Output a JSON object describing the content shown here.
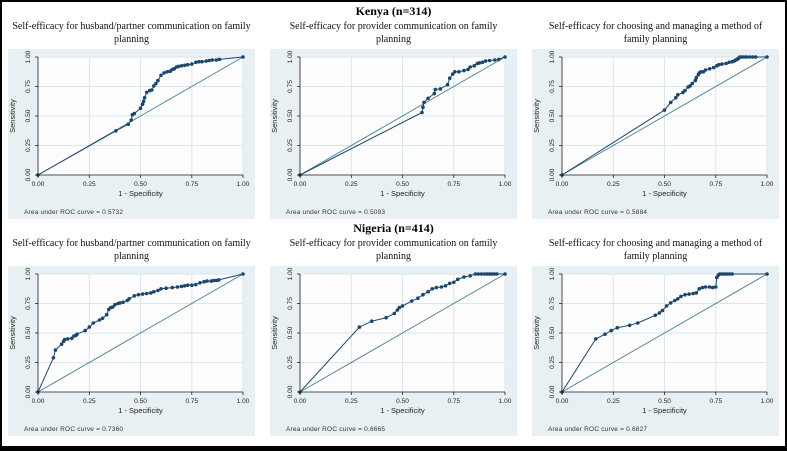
{
  "sections": [
    {
      "header": "Kenya (n=314)"
    },
    {
      "header": "Nigeria (n=414)"
    }
  ],
  "colors": {
    "curve": "#1a476f",
    "reference_line": "#45808c",
    "card_background": "#e9f0f4",
    "plot_background": "#fdfdfd",
    "gridline": "#d9e6ec",
    "axis": "#222222"
  },
  "chart_data": [
    {
      "type": "line",
      "section": 0,
      "title": "Self-efficacy for husband/partner communication on family planning",
      "xlabel": "1 - Specificity",
      "ylabel": "Sensitivity",
      "xticks": [
        "0.00",
        "0.25",
        "0.50",
        "0.75",
        "1.00"
      ],
      "yticks": [
        "0.00",
        "0.25",
        "0.50",
        "0.75",
        "1.00"
      ],
      "xlim": [
        0,
        1
      ],
      "ylim": [
        0,
        1
      ],
      "auc": 0.5732,
      "note": "Area under ROC curve = 0.5732",
      "reference_line": [
        [
          0,
          0
        ],
        [
          1,
          1
        ]
      ],
      "points": [
        [
          0,
          0
        ],
        [
          0.38,
          0.375
        ],
        [
          0.44,
          0.43
        ],
        [
          0.455,
          0.465
        ],
        [
          0.46,
          0.51
        ],
        [
          0.47,
          0.52
        ],
        [
          0.5,
          0.565
        ],
        [
          0.51,
          0.6
        ],
        [
          0.515,
          0.625
        ],
        [
          0.52,
          0.655
        ],
        [
          0.53,
          0.7
        ],
        [
          0.545,
          0.715
        ],
        [
          0.555,
          0.72
        ],
        [
          0.565,
          0.755
        ],
        [
          0.575,
          0.775
        ],
        [
          0.585,
          0.8
        ],
        [
          0.6,
          0.845
        ],
        [
          0.615,
          0.865
        ],
        [
          0.63,
          0.875
        ],
        [
          0.645,
          0.88
        ],
        [
          0.655,
          0.895
        ],
        [
          0.665,
          0.9
        ],
        [
          0.675,
          0.915
        ],
        [
          0.685,
          0.92
        ],
        [
          0.7,
          0.925
        ],
        [
          0.715,
          0.93
        ],
        [
          0.73,
          0.935
        ],
        [
          0.75,
          0.94
        ],
        [
          0.77,
          0.955
        ],
        [
          0.785,
          0.96
        ],
        [
          0.8,
          0.96
        ],
        [
          0.82,
          0.965
        ],
        [
          0.835,
          0.97
        ],
        [
          0.85,
          0.975
        ],
        [
          0.87,
          0.975
        ],
        [
          0.885,
          0.98
        ],
        [
          1,
          1
        ]
      ]
    },
    {
      "type": "line",
      "section": 0,
      "title": "Self-efficacy for provider communication on family planning",
      "xlabel": "1 - Specificity",
      "ylabel": "Sensitivity",
      "xticks": [
        "0.00",
        "0.25",
        "0.50",
        "0.75",
        "1.00"
      ],
      "yticks": [
        "0.00",
        "0.25",
        "0.50",
        "0.75",
        "1.00"
      ],
      "xlim": [
        0,
        1
      ],
      "ylim": [
        0,
        1
      ],
      "auc": 0.5093,
      "note": "Area under ROC curve = 0.5093",
      "reference_line": [
        [
          0,
          0
        ],
        [
          1,
          1
        ]
      ],
      "points": [
        [
          0,
          0
        ],
        [
          0.595,
          0.53
        ],
        [
          0.6,
          0.575
        ],
        [
          0.605,
          0.615
        ],
        [
          0.625,
          0.65
        ],
        [
          0.655,
          0.69
        ],
        [
          0.66,
          0.725
        ],
        [
          0.685,
          0.73
        ],
        [
          0.72,
          0.765
        ],
        [
          0.73,
          0.82
        ],
        [
          0.745,
          0.855
        ],
        [
          0.755,
          0.875
        ],
        [
          0.775,
          0.875
        ],
        [
          0.8,
          0.885
        ],
        [
          0.82,
          0.895
        ],
        [
          0.83,
          0.915
        ],
        [
          0.85,
          0.925
        ],
        [
          0.865,
          0.945
        ],
        [
          0.875,
          0.95
        ],
        [
          0.89,
          0.955
        ],
        [
          0.905,
          0.965
        ],
        [
          0.925,
          0.97
        ],
        [
          0.95,
          0.975
        ],
        [
          0.97,
          0.98
        ],
        [
          1,
          1
        ]
      ]
    },
    {
      "type": "line",
      "section": 0,
      "title": "Self-efficacy for choosing and managing a method of family planning",
      "xlabel": "1 - Specificity",
      "ylabel": "Sensitivity",
      "xticks": [
        "0.00",
        "0.25",
        "0.50",
        "0.75",
        "1.00"
      ],
      "yticks": [
        "0.00",
        "0.25",
        "0.50",
        "0.75",
        "1.00"
      ],
      "xlim": [
        0,
        1
      ],
      "ylim": [
        0,
        1
      ],
      "auc": 0.5884,
      "note": "Area under ROC curve = 0.5884",
      "reference_line": [
        [
          0,
          0
        ],
        [
          1,
          1
        ]
      ],
      "points": [
        [
          0,
          0
        ],
        [
          0.5,
          0.55
        ],
        [
          0.53,
          0.615
        ],
        [
          0.555,
          0.655
        ],
        [
          0.565,
          0.68
        ],
        [
          0.59,
          0.7
        ],
        [
          0.6,
          0.715
        ],
        [
          0.615,
          0.745
        ],
        [
          0.625,
          0.755
        ],
        [
          0.635,
          0.775
        ],
        [
          0.65,
          0.8
        ],
        [
          0.655,
          0.825
        ],
        [
          0.665,
          0.85
        ],
        [
          0.67,
          0.865
        ],
        [
          0.678,
          0.875
        ],
        [
          0.69,
          0.875
        ],
        [
          0.7,
          0.89
        ],
        [
          0.72,
          0.9
        ],
        [
          0.74,
          0.91
        ],
        [
          0.755,
          0.925
        ],
        [
          0.765,
          0.935
        ],
        [
          0.78,
          0.94
        ],
        [
          0.8,
          0.945
        ],
        [
          0.815,
          0.955
        ],
        [
          0.83,
          0.96
        ],
        [
          0.84,
          0.965
        ],
        [
          0.848,
          0.975
        ],
        [
          0.853,
          0.98
        ],
        [
          0.858,
          0.985
        ],
        [
          0.862,
          0.99
        ],
        [
          0.868,
          1.0
        ],
        [
          0.878,
          1.0
        ],
        [
          0.888,
          1.0
        ],
        [
          0.9,
          1.0
        ],
        [
          0.915,
          1.0
        ],
        [
          0.93,
          1.0
        ],
        [
          0.945,
          1.0
        ],
        [
          1,
          1
        ]
      ]
    },
    {
      "type": "line",
      "section": 1,
      "title": "Self-efficacy for husband/partner communication on family planning",
      "xlabel": "1 - Specificity",
      "ylabel": "Sensitivity",
      "xticks": [
        "0.00",
        "0.25",
        "0.50",
        "0.75",
        "1.00"
      ],
      "yticks": [
        "0.00",
        "0.25",
        "0.50",
        "0.75",
        "1.00"
      ],
      "xlim": [
        0,
        1
      ],
      "ylim": [
        0,
        1
      ],
      "auc": 0.736,
      "note": "Area under ROC curve = 0.7360",
      "reference_line": [
        [
          0,
          0
        ],
        [
          1,
          1
        ]
      ],
      "points": [
        [
          0,
          0
        ],
        [
          0.075,
          0.29
        ],
        [
          0.085,
          0.355
        ],
        [
          0.115,
          0.405
        ],
        [
          0.125,
          0.43
        ],
        [
          0.13,
          0.445
        ],
        [
          0.145,
          0.45
        ],
        [
          0.165,
          0.455
        ],
        [
          0.175,
          0.475
        ],
        [
          0.185,
          0.48
        ],
        [
          0.19,
          0.49
        ],
        [
          0.23,
          0.52
        ],
        [
          0.25,
          0.55
        ],
        [
          0.27,
          0.585
        ],
        [
          0.3,
          0.61
        ],
        [
          0.315,
          0.625
        ],
        [
          0.335,
          0.655
        ],
        [
          0.345,
          0.7
        ],
        [
          0.355,
          0.715
        ],
        [
          0.365,
          0.72
        ],
        [
          0.375,
          0.74
        ],
        [
          0.39,
          0.75
        ],
        [
          0.4,
          0.755
        ],
        [
          0.415,
          0.76
        ],
        [
          0.435,
          0.775
        ],
        [
          0.445,
          0.79
        ],
        [
          0.47,
          0.815
        ],
        [
          0.49,
          0.825
        ],
        [
          0.51,
          0.83
        ],
        [
          0.53,
          0.835
        ],
        [
          0.55,
          0.84
        ],
        [
          0.565,
          0.85
        ],
        [
          0.585,
          0.86
        ],
        [
          0.6,
          0.875
        ],
        [
          0.625,
          0.88
        ],
        [
          0.655,
          0.885
        ],
        [
          0.68,
          0.89
        ],
        [
          0.7,
          0.895
        ],
        [
          0.715,
          0.9
        ],
        [
          0.73,
          0.905
        ],
        [
          0.75,
          0.905
        ],
        [
          0.77,
          0.91
        ],
        [
          0.79,
          0.925
        ],
        [
          0.81,
          0.935
        ],
        [
          0.825,
          0.94
        ],
        [
          0.845,
          0.94
        ],
        [
          0.857,
          0.945
        ],
        [
          0.87,
          0.945
        ],
        [
          0.882,
          0.95
        ],
        [
          1,
          1
        ]
      ]
    },
    {
      "type": "line",
      "section": 1,
      "title": "Self-efficacy for provider communication on family planning",
      "xlabel": "1 - Specificity",
      "ylabel": "Sensitivity",
      "xticks": [
        "0.00",
        "0.25",
        "0.50",
        "0.75",
        "1.00"
      ],
      "yticks": [
        "0.00",
        "0.25",
        "0.50",
        "0.75",
        "1.00"
      ],
      "xlim": [
        0,
        1
      ],
      "ylim": [
        0,
        1
      ],
      "auc": 0.6665,
      "note": "Area under ROC curve = 0.6665",
      "reference_line": [
        [
          0,
          0
        ],
        [
          1,
          1
        ]
      ],
      "points": [
        [
          0,
          0
        ],
        [
          0.29,
          0.55
        ],
        [
          0.35,
          0.6
        ],
        [
          0.42,
          0.63
        ],
        [
          0.46,
          0.665
        ],
        [
          0.475,
          0.695
        ],
        [
          0.485,
          0.715
        ],
        [
          0.5,
          0.73
        ],
        [
          0.545,
          0.77
        ],
        [
          0.575,
          0.795
        ],
        [
          0.6,
          0.825
        ],
        [
          0.625,
          0.85
        ],
        [
          0.645,
          0.875
        ],
        [
          0.665,
          0.885
        ],
        [
          0.69,
          0.89
        ],
        [
          0.71,
          0.9
        ],
        [
          0.73,
          0.92
        ],
        [
          0.75,
          0.93
        ],
        [
          0.77,
          0.955
        ],
        [
          0.8,
          0.975
        ],
        [
          0.83,
          0.985
        ],
        [
          0.855,
          1.0
        ],
        [
          0.87,
          1.0
        ],
        [
          0.885,
          1.0
        ],
        [
          0.9,
          1.0
        ],
        [
          0.912,
          1.0
        ],
        [
          0.924,
          1.0
        ],
        [
          0.936,
          1.0
        ],
        [
          0.948,
          1.0
        ],
        [
          0.96,
          1.0
        ],
        [
          1,
          1
        ]
      ]
    },
    {
      "type": "line",
      "section": 1,
      "title": "Self-efficacy for choosing and managing a method of family planning",
      "xlabel": "1 - Specificity",
      "ylabel": "Sensitivity",
      "xticks": [
        "0.00",
        "0.25",
        "0.50",
        "0.75",
        "1.00"
      ],
      "yticks": [
        "0.00",
        "0.25",
        "0.50",
        "0.75",
        "1.00"
      ],
      "xlim": [
        0,
        1
      ],
      "ylim": [
        0,
        1
      ],
      "auc": 0.6827,
      "note": "Area under ROC curve = 0.6827",
      "reference_line": [
        [
          0,
          0
        ],
        [
          1,
          1
        ]
      ],
      "points": [
        [
          0,
          0
        ],
        [
          0.165,
          0.45
        ],
        [
          0.21,
          0.49
        ],
        [
          0.24,
          0.52
        ],
        [
          0.27,
          0.545
        ],
        [
          0.33,
          0.565
        ],
        [
          0.37,
          0.585
        ],
        [
          0.455,
          0.65
        ],
        [
          0.475,
          0.67
        ],
        [
          0.49,
          0.69
        ],
        [
          0.51,
          0.73
        ],
        [
          0.53,
          0.755
        ],
        [
          0.55,
          0.775
        ],
        [
          0.565,
          0.79
        ],
        [
          0.58,
          0.81
        ],
        [
          0.6,
          0.825
        ],
        [
          0.62,
          0.83
        ],
        [
          0.64,
          0.835
        ],
        [
          0.655,
          0.84
        ],
        [
          0.67,
          0.875
        ],
        [
          0.685,
          0.885
        ],
        [
          0.7,
          0.89
        ],
        [
          0.72,
          0.89
        ],
        [
          0.735,
          0.885
        ],
        [
          0.75,
          0.89
        ],
        [
          0.755,
          0.97
        ],
        [
          0.762,
          0.99
        ],
        [
          0.77,
          1.0
        ],
        [
          0.782,
          1.0
        ],
        [
          0.794,
          1.0
        ],
        [
          0.806,
          1.0
        ],
        [
          0.818,
          1.0
        ],
        [
          0.83,
          1.0
        ],
        [
          1,
          1
        ]
      ]
    }
  ]
}
